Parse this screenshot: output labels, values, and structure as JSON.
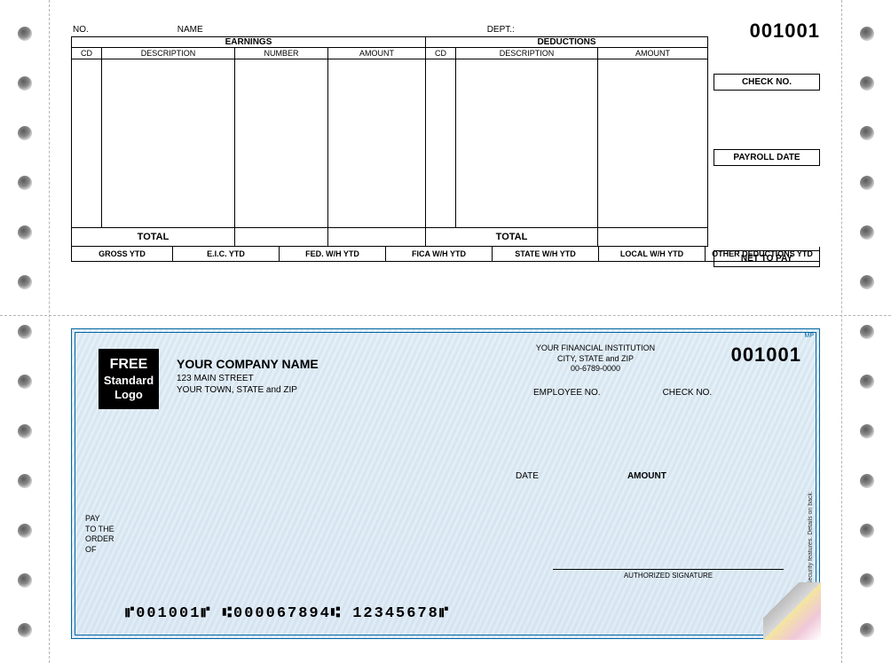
{
  "feedHoles": {
    "count": 13,
    "startY": 30,
    "stepY": 56
  },
  "stub": {
    "number": "001001",
    "headerLabels": {
      "no": "NO.",
      "name": "NAME",
      "dept": "DEPT.:"
    },
    "sections": {
      "earnings": "EARNINGS",
      "deductions": "DEDUCTIONS"
    },
    "cols": {
      "cd": "CD",
      "description": "DESCRIPTION",
      "number": "NUMBER",
      "amount": "AMOUNT"
    },
    "totalLabel": "TOTAL",
    "sideBoxes": {
      "checkNo": "CHECK NO.",
      "payrollDate": "PAYROLL DATE",
      "netToPay": "NET TO PAY"
    },
    "ytd": {
      "gross": "GROSS YTD",
      "eic": "E.I.C. YTD",
      "fed": "FED. W/H YTD",
      "fica": "FICA W/H YTD",
      "state": "STATE W/H YTD",
      "local": "LOCAL W/H YTD",
      "other": "OTHER DEDUCTIONS YTD"
    }
  },
  "check": {
    "number": "001001",
    "logo": {
      "line1": "FREE",
      "line2": "Standard",
      "line3": "Logo"
    },
    "company": {
      "name": "YOUR COMPANY NAME",
      "addr1": "123 MAIN STREET",
      "addr2": "YOUR TOWN, STATE and ZIP"
    },
    "bank": {
      "name": "YOUR FINANCIAL INSTITUTION",
      "cityState": "CITY, STATE and ZIP",
      "routing": "00-6789-0000"
    },
    "labels": {
      "employeeNo": "EMPLOYEE NO.",
      "checkNo": "CHECK NO.",
      "date": "DATE",
      "amount": "AMOUNT",
      "payToOrder1": "PAY",
      "payToOrder2": "TO THE",
      "payToOrder3": "ORDER",
      "payToOrder4": "OF",
      "authorizedSignature": "AUTHORIZED SIGNATURE",
      "security": "Security features. Details on back.",
      "mp": "MP"
    },
    "micr": "⑈001001⑈  ⑆000067894⑆  12345678⑈"
  },
  "colors": {
    "checkBorder": "#0066a3",
    "checkBg1": "#e9f2f8",
    "checkBg2": "#e3eef6",
    "line": "#000000",
    "dash": "#b5b5b5"
  }
}
